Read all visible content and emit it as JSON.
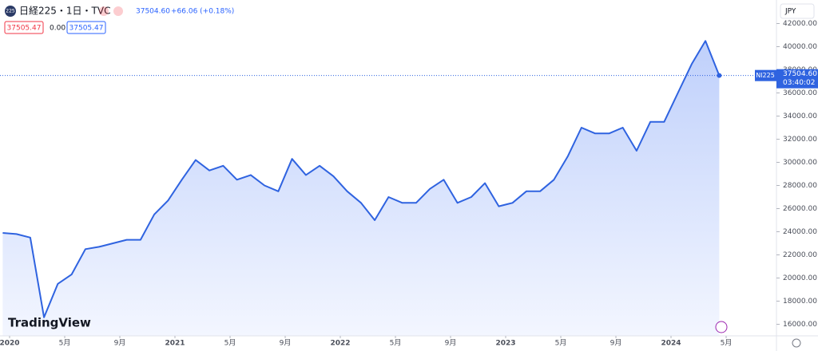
{
  "chart_data": {
    "type": "area",
    "symbol": "日経225・1日・TVC",
    "icon": "225",
    "last": "37504.60",
    "change": "+66.06 (+0.18%)",
    "bid": "37505.47",
    "spread": "0.00",
    "ask": "37505.47",
    "currency": "JPY",
    "ticker": "NI225",
    "countdown": "03:40:02",
    "brand": "TradingView",
    "last_price": {
      "value": 37504.6,
      "label": "37504.60"
    },
    "x": [
      "2019-12",
      "2020-01",
      "2020-02",
      "2020-03",
      "2020-04",
      "2020-05",
      "2020-06",
      "2020-07",
      "2020-08",
      "2020-09",
      "2020-10",
      "2020-11",
      "2020-12",
      "2021-01",
      "2021-02",
      "2021-03",
      "2021-04",
      "2021-05",
      "2021-06",
      "2021-07",
      "2021-08",
      "2021-09",
      "2021-10",
      "2021-11",
      "2021-12",
      "2022-01",
      "2022-02",
      "2022-03",
      "2022-04",
      "2022-05",
      "2022-06",
      "2022-07",
      "2022-08",
      "2022-09",
      "2022-10",
      "2022-11",
      "2022-12",
      "2023-01",
      "2023-02",
      "2023-03",
      "2023-04",
      "2023-05",
      "2023-06",
      "2023-07",
      "2023-08",
      "2023-09",
      "2023-10",
      "2023-11",
      "2023-12",
      "2024-01",
      "2024-02",
      "2024-03",
      "2024-04"
    ],
    "series": [
      {
        "color": "#2f63e0",
        "values": [
          23900,
          23800,
          23500,
          16600,
          19500,
          20300,
          22500,
          22700,
          23000,
          23300,
          23300,
          25500,
          26700,
          28500,
          30200,
          29300,
          29700,
          28500,
          28900,
          28000,
          27500,
          30300,
          28900,
          29700,
          28800,
          27500,
          26500,
          25000,
          27000,
          26500,
          26500,
          27700,
          28500,
          26500,
          27000,
          28200,
          26200,
          26500,
          27500,
          27500,
          28500,
          30500,
          33000,
          32500,
          32500,
          33000,
          31000,
          33500,
          33500,
          36000,
          38500,
          40500,
          37504.6
        ]
      }
    ],
    "ylim": [
      15000,
      43000
    ],
    "yticks": [
      {
        "value": 16000,
        "label": "16000.00"
      },
      {
        "value": 18000,
        "label": "18000.00"
      },
      {
        "value": 20000,
        "label": "20000.00"
      },
      {
        "value": 22000,
        "label": "22000.00"
      },
      {
        "value": 24000,
        "label": "24000.00"
      },
      {
        "value": 26000,
        "label": "26000.00"
      },
      {
        "value": 28000,
        "label": "28000.00"
      },
      {
        "value": 30000,
        "label": "30000.00"
      },
      {
        "value": 32000,
        "label": "32000.00"
      },
      {
        "value": 34000,
        "label": "34000.00"
      },
      {
        "value": 36000,
        "label": "36000.00"
      },
      {
        "value": 38000,
        "label": "38000.00"
      },
      {
        "value": 40000,
        "label": "40000.00"
      },
      {
        "value": 42000,
        "label": "42000.00"
      }
    ],
    "xticks": [
      {
        "value": "2020-01",
        "label": "2020"
      },
      {
        "value": "2020-05",
        "label": "5月"
      },
      {
        "value": "2020-09",
        "label": "9月"
      },
      {
        "value": "2021-01",
        "label": "2021"
      },
      {
        "value": "2021-05",
        "label": "5月"
      },
      {
        "value": "2021-09",
        "label": "9月"
      },
      {
        "value": "2022-01",
        "label": "2022"
      },
      {
        "value": "2022-05",
        "label": "5月"
      },
      {
        "value": "2022-09",
        "label": "9月"
      },
      {
        "value": "2023-01",
        "label": "2023"
      },
      {
        "value": "2023-05",
        "label": "5月"
      },
      {
        "value": "2023-09",
        "label": "9月"
      },
      {
        "value": "2024-01",
        "label": "2024"
      },
      {
        "value": "2024-05",
        "label": "5月"
      }
    ]
  }
}
